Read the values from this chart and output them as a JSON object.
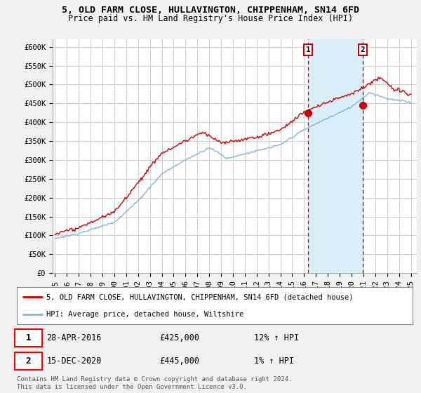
{
  "title_line1": "5, OLD FARM CLOSE, HULLAVINGTON, CHIPPENHAM, SN14 6FD",
  "title_line2": "Price paid vs. HM Land Registry's House Price Index (HPI)",
  "ylabel_ticks": [
    "£0",
    "£50K",
    "£100K",
    "£150K",
    "£200K",
    "£250K",
    "£300K",
    "£350K",
    "£400K",
    "£450K",
    "£500K",
    "£550K",
    "£600K"
  ],
  "ytick_values": [
    0,
    50000,
    100000,
    150000,
    200000,
    250000,
    300000,
    350000,
    400000,
    450000,
    500000,
    550000,
    600000
  ],
  "ylim": [
    0,
    620000
  ],
  "xlim_start": 1994.8,
  "xlim_end": 2025.5,
  "xtick_years": [
    1995,
    1996,
    1997,
    1998,
    1999,
    2000,
    2001,
    2002,
    2003,
    2004,
    2005,
    2006,
    2007,
    2008,
    2009,
    2010,
    2011,
    2012,
    2013,
    2014,
    2015,
    2016,
    2017,
    2018,
    2019,
    2020,
    2021,
    2022,
    2023,
    2024,
    2025
  ],
  "hpi_color": "#7db8d8",
  "hpi_fill_color": "#daeef7",
  "sale_color": "#cc0000",
  "marker1_x": 2016.33,
  "marker1_y": 425000,
  "marker2_x": 2020.96,
  "marker2_y": 445000,
  "marker1_label": "1",
  "marker2_label": "2",
  "vline1_x": 2016.33,
  "vline2_x": 2020.96,
  "legend_sale": "5, OLD FARM CLOSE, HULLAVINGTON, CHIPPENHAM, SN14 6FD (detached house)",
  "legend_hpi": "HPI: Average price, detached house, Wiltshire",
  "note1_num": "1",
  "note1_date": "28-APR-2016",
  "note1_price": "£425,000",
  "note1_hpi": "12% ↑ HPI",
  "note2_num": "2",
  "note2_date": "15-DEC-2020",
  "note2_price": "£445,000",
  "note2_hpi": "1% ↑ HPI",
  "footer": "Contains HM Land Registry data © Crown copyright and database right 2024.\nThis data is licensed under the Open Government Licence v3.0.",
  "background_color": "#f0f0f0",
  "plot_background": "#ffffff"
}
